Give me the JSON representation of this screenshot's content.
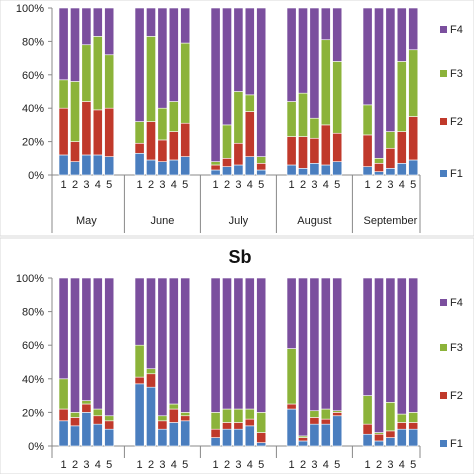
{
  "chart_data": [
    {
      "type": "bar",
      "stacked": true,
      "title": "",
      "ylim": [
        0,
        100
      ],
      "y_ticks": [
        "0%",
        "20%",
        "40%",
        "60%",
        "80%",
        "100%"
      ],
      "groups": [
        "May",
        "June",
        "July",
        "August",
        "September"
      ],
      "categories": [
        "1",
        "2",
        "3",
        "4",
        "5",
        "1",
        "2",
        "3",
        "4",
        "5",
        "1",
        "2",
        "3",
        "4",
        "5",
        "1",
        "2",
        "3",
        "4",
        "5",
        "1",
        "2",
        "3",
        "4",
        "5"
      ],
      "legend_position": "right",
      "series": [
        {
          "name": "F1",
          "color": "#4a7ebf",
          "values": [
            12,
            8,
            12,
            12,
            11,
            13,
            9,
            8,
            9,
            11,
            3,
            5,
            6,
            11,
            3,
            6,
            4,
            7,
            6,
            8,
            5,
            2,
            4,
            7,
            9
          ]
        },
        {
          "name": "F2",
          "color": "#c0392b",
          "values": [
            28,
            12,
            32,
            27,
            29,
            6,
            23,
            13,
            17,
            20,
            3,
            5,
            13,
            27,
            4,
            17,
            19,
            15,
            24,
            17,
            19,
            5,
            12,
            19,
            26
          ]
        },
        {
          "name": "F3",
          "color": "#8cb33a",
          "values": [
            17,
            36,
            34,
            44,
            32,
            13,
            51,
            19,
            18,
            48,
            2,
            20,
            31,
            10,
            4,
            21,
            26,
            12,
            51,
            43,
            18,
            3,
            10,
            42,
            40
          ]
        },
        {
          "name": "F4",
          "color": "#7b4f9e",
          "values": [
            43,
            44,
            22,
            17,
            28,
            68,
            17,
            60,
            56,
            21,
            92,
            70,
            50,
            52,
            89,
            56,
            51,
            66,
            19,
            32,
            58,
            90,
            74,
            32,
            25
          ]
        }
      ]
    },
    {
      "type": "bar",
      "stacked": true,
      "title": "Sb",
      "ylim": [
        0,
        100
      ],
      "y_ticks": [
        "0%",
        "20%",
        "40%",
        "60%",
        "80%",
        "100%"
      ],
      "groups": [],
      "categories": [
        "1",
        "2",
        "3",
        "4",
        "5",
        "1",
        "2",
        "3",
        "4",
        "5",
        "1",
        "2",
        "3",
        "4",
        "5",
        "1",
        "2",
        "3",
        "4",
        "5",
        "1",
        "2",
        "3",
        "4",
        "5"
      ],
      "legend_position": "right",
      "series": [
        {
          "name": "F1",
          "color": "#4a7ebf",
          "values": [
            15,
            12,
            20,
            13,
            10,
            37,
            35,
            10,
            14,
            15,
            5,
            10,
            10,
            12,
            2,
            22,
            3,
            13,
            13,
            18,
            7,
            3,
            5,
            10,
            10
          ]
        },
        {
          "name": "F2",
          "color": "#c0392b",
          "values": [
            7,
            5,
            5,
            5,
            5,
            4,
            8,
            5,
            8,
            3,
            5,
            4,
            4,
            4,
            6,
            3,
            2,
            4,
            3,
            2,
            6,
            4,
            4,
            4,
            4
          ]
        },
        {
          "name": "F3",
          "color": "#8cb33a",
          "values": [
            18,
            3,
            2,
            4,
            3,
            19,
            3,
            3,
            3,
            2,
            10,
            8,
            8,
            6,
            12,
            33,
            1,
            4,
            6,
            1,
            17,
            1,
            17,
            5,
            6
          ]
        },
        {
          "name": "F4",
          "color": "#7b4f9e",
          "values": [
            60,
            80,
            73,
            78,
            82,
            40,
            54,
            82,
            75,
            80,
            80,
            78,
            78,
            78,
            80,
            42,
            94,
            79,
            78,
            79,
            70,
            92,
            74,
            81,
            80
          ]
        }
      ]
    }
  ]
}
